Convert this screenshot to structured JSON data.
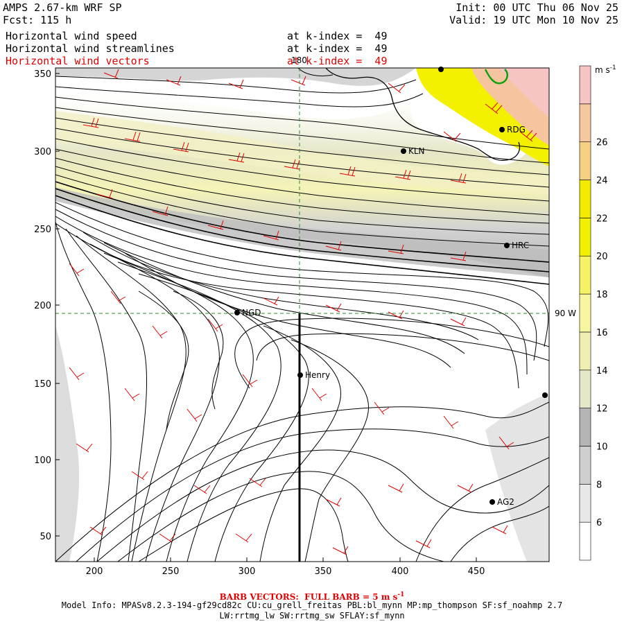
{
  "header": {
    "model": "AMPS 2.67-km WRF SP",
    "forecast": "Fcst: 115 h",
    "init": "Init: 00 UTC Thu 06 Nov 25",
    "valid": "Valid: 19 UTC Mon 10 Nov 25",
    "fields": [
      {
        "name": "Horizontal wind speed",
        "level": "at k-index =  49",
        "color": "#000000"
      },
      {
        "name": "Horizontal wind streamlines",
        "level": "at k-index =  49",
        "color": "#000000"
      },
      {
        "name": "Horizontal wind vectors",
        "level": "at k-index =  49",
        "color": "#e00000"
      }
    ]
  },
  "map": {
    "x_ticks": [
      "200",
      "250",
      "300",
      "350",
      "400",
      "450"
    ],
    "y_ticks": [
      "50",
      "100",
      "150",
      "200",
      "250",
      "300",
      "350"
    ],
    "meridian_label": "180",
    "parallel_label": "90 W",
    "stations": [
      {
        "id": "LIT",
        "label": ""
      },
      {
        "id": "RDG",
        "label": "RDG"
      },
      {
        "id": "KLN",
        "label": "KLN"
      },
      {
        "id": "HRC",
        "label": "HRC"
      },
      {
        "id": "NGD",
        "label": "NGD"
      },
      {
        "id": "HENRY",
        "label": "Henry"
      },
      {
        "id": "EDGE",
        "label": ""
      },
      {
        "id": "AG2",
        "label": "AG2"
      }
    ]
  },
  "colorbar": {
    "unit": "m s",
    "unit_exp": "-1",
    "labels": [
      "6",
      "8",
      "10",
      "12",
      "14",
      "16",
      "18",
      "20",
      "22",
      "24",
      "26"
    ],
    "colors": [
      "#ffffff",
      "#e8e8e8",
      "#cfcfcf",
      "#b4b4b4",
      "#e6e6c8",
      "#efefb4",
      "#f7f7a0",
      "#f5f264",
      "#f0f000",
      "#f0eb00",
      "#f5d080",
      "#f6c8a0",
      "#f7c4c4"
    ]
  },
  "footer": {
    "barb_note": "BARB VECTORS:  FULL BARB = 5 m s",
    "barb_exp": "-1",
    "model_info": "Model Info: MPASv8.2.3-194-gf29cd82c CU:cu_grell_freitas PBL:bl_mynn MP:mp_thompson SF:sf_noahmp 2.7",
    "physics": "LW:rrtmg_lw SW:rrtmg_sw SFLAY:sf_mynn"
  }
}
